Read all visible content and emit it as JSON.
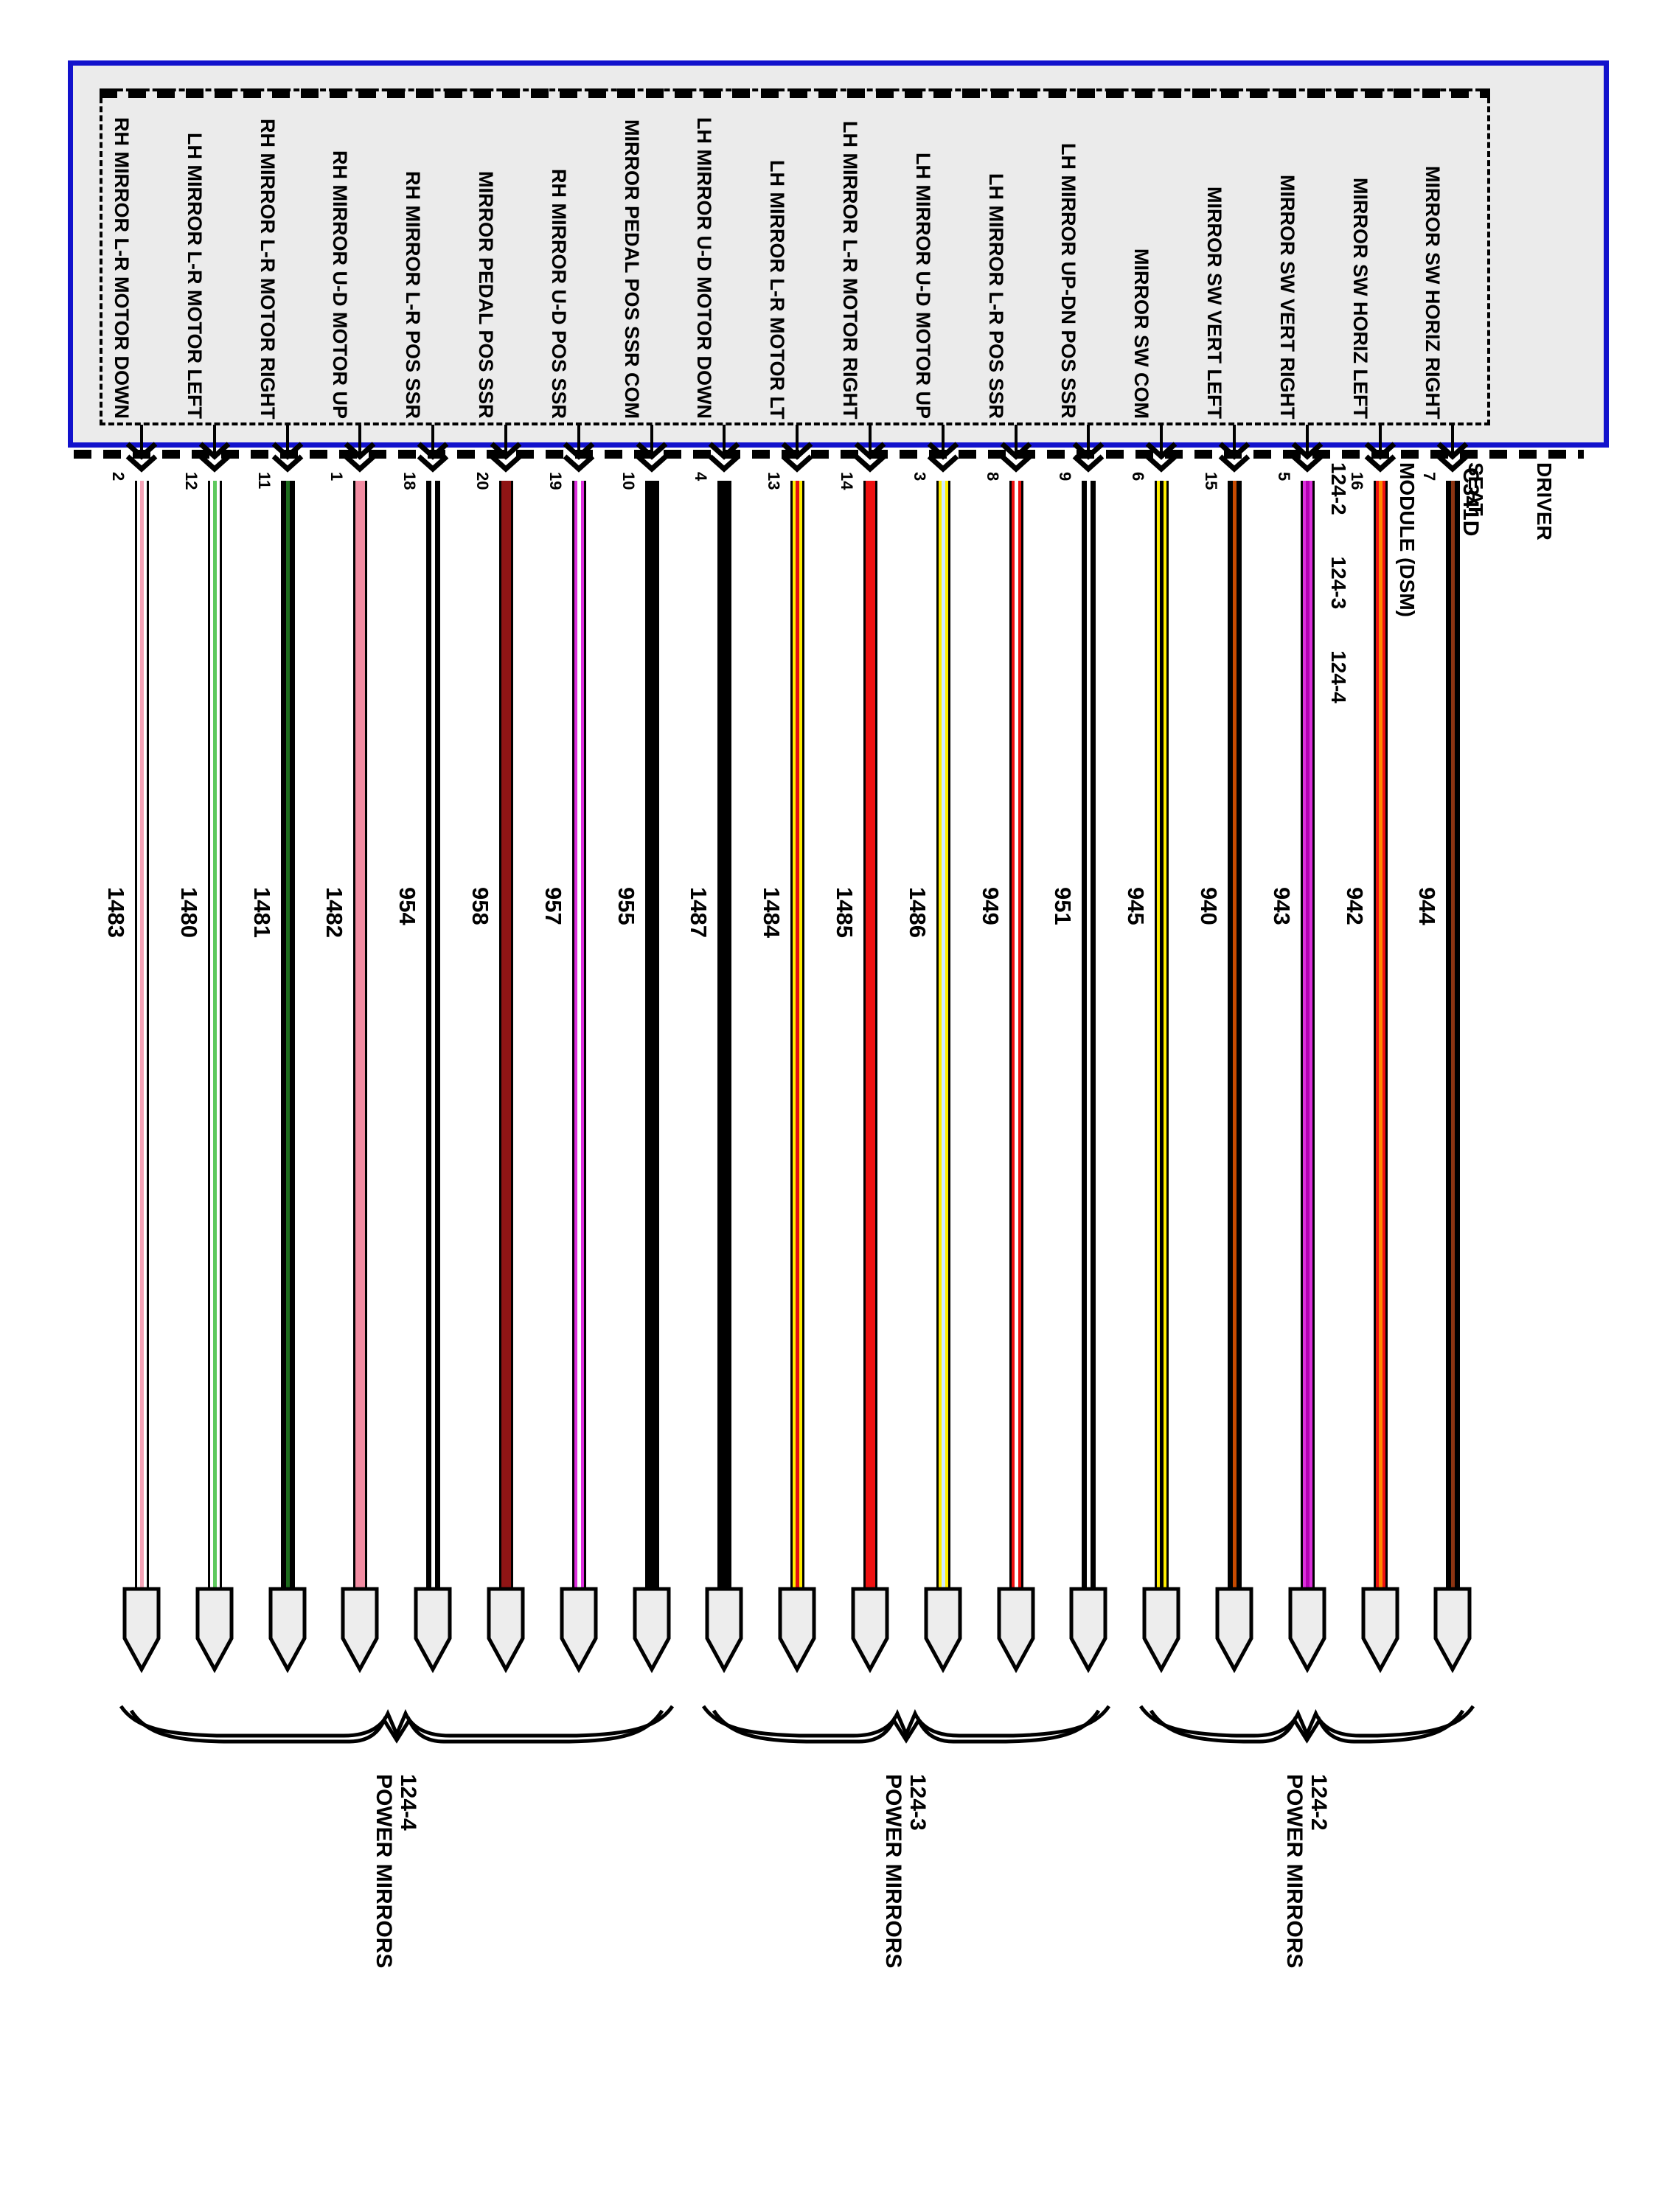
{
  "module": {
    "name_lines": [
      "DRIVER",
      "SEAT",
      "MODULE (DSM)"
    ],
    "connector_row": "124-2  124-3  124-4",
    "connector_id": "C341D",
    "border_color": "#1212cc",
    "fill_color": "#ebebeb",
    "pin_fill_color": "#ededed"
  },
  "wires": [
    {
      "pin": "2",
      "signal": "RH MIRROR L-R MOTOR DOWN",
      "circuit": "1483",
      "code": "WH-PK",
      "fill": "#ffffff",
      "stripe": "#f5a3b7"
    },
    {
      "pin": "12",
      "signal": "LH MIRROR L-R MOTOR LEFT",
      "circuit": "1480",
      "code": "WH-LG",
      "fill": "#ffffff",
      "stripe": "#5ec95e"
    },
    {
      "pin": "11",
      "signal": "RH MIRROR L-R MOTOR RIGHT",
      "circuit": "1481",
      "code": "DG",
      "fill": "#000000",
      "stripe": "#1d6b1d"
    },
    {
      "pin": "1",
      "signal": "RH MIRROR U-D MOTOR UP",
      "circuit": "1482",
      "code": "PK",
      "fill": "#f28ca2",
      "stripe": ""
    },
    {
      "pin": "18",
      "signal": "RH MIRROR L-R POS SSR",
      "circuit": "954",
      "code": "DG-WH",
      "fill": "#000000",
      "stripe": "#ffffff"
    },
    {
      "pin": "20",
      "signal": "MIRROR PEDAL POS SSR",
      "circuit": "958",
      "code": "GY-RD",
      "fill": "#8f1515",
      "stripe": ""
    },
    {
      "pin": "19",
      "signal": "RH MIRROR U-D POS SSR",
      "circuit": "957",
      "code": "VT-WH",
      "fill": "#dd2fdd",
      "stripe": "#ffffff"
    },
    {
      "pin": "10",
      "signal": "MIRROR PEDAL POS SSR COM",
      "circuit": "955",
      "code": "GY",
      "fill": "#000000",
      "stripe": ""
    },
    {
      "pin": "4",
      "signal": "LH MIRROR U-D MOTOR DOWN",
      "circuit": "1487",
      "code": "DB",
      "fill": "#000000",
      "stripe": ""
    },
    {
      "pin": "13",
      "signal": "LH MIRROR L-R MOTOR LT",
      "circuit": "1484",
      "code": "YE-RD",
      "fill": "#ffee00",
      "stripe": "#e31212"
    },
    {
      "pin": "14",
      "signal": "LH MIRROR L-R MOTOR RIGHT",
      "circuit": "1485",
      "code": "RD",
      "fill": "#ee1111",
      "stripe": ""
    },
    {
      "pin": "3",
      "signal": "LH MIRROR U-D MOTOR UP",
      "circuit": "1486",
      "code": "YE-LB",
      "fill": "#ffee00",
      "stripe": "#cfe9ff"
    },
    {
      "pin": "8",
      "signal": "LH MIRROR L-R POS SSR",
      "circuit": "949",
      "code": "RD-WH",
      "fill": "#ee1111",
      "stripe": "#ffffff"
    },
    {
      "pin": "9",
      "signal": "LH MIRROR UP-DN POS SSR",
      "circuit": "951",
      "code": "DB-WH",
      "fill": "#000000",
      "stripe": "#ffffff"
    },
    {
      "pin": "6",
      "signal": "MIRROR SW COM",
      "circuit": "945",
      "code": "YE-BK",
      "fill": "#ffee00",
      "stripe": "#000000"
    },
    {
      "pin": "15",
      "signal": "MIRROR SW VERT LEFT",
      "circuit": "940",
      "code": "DB-OG",
      "fill": "#000000",
      "stripe": "#c64a00"
    },
    {
      "pin": "5",
      "signal": "MIRROR SW VERT RIGHT",
      "circuit": "943",
      "code": "VT-OG",
      "fill": "#dd2fdd",
      "stripe": "#b400b4"
    },
    {
      "pin": "16",
      "signal": "MIRROR SW HORIZ LEFT",
      "circuit": "942",
      "code": "RD-OG",
      "fill": "#ee1111",
      "stripe": "#ff8800"
    },
    {
      "pin": "7",
      "signal": "MIRROR SW HORIZ RIGHT",
      "circuit": "944",
      "code": "DG-OG",
      "fill": "#000000",
      "stripe": "#8c3412"
    }
  ],
  "groups": [
    {
      "connector": "124-4",
      "label": "POWER MIRRORS",
      "start": 0,
      "count": 8
    },
    {
      "connector": "124-3",
      "label": "POWER MIRRORS",
      "start": 8,
      "count": 6
    },
    {
      "connector": "124-2",
      "label": "POWER MIRRORS",
      "start": 14,
      "count": 5
    }
  ]
}
